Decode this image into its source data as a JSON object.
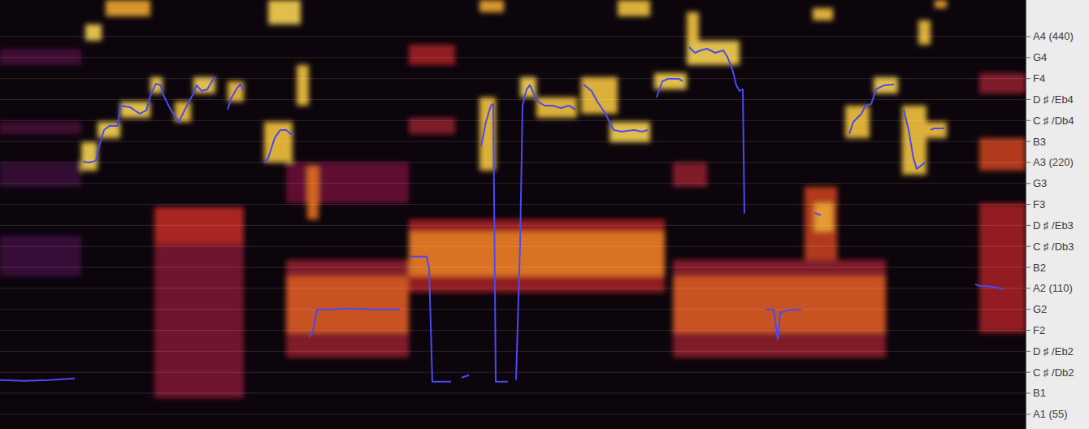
{
  "chart_data": {
    "type": "heatmap",
    "log": "y",
    "grid": true,
    "tick_labels": "y",
    "xlim": [
      0,
      1262
    ],
    "ylim": [
      50.7,
      538.1
    ],
    "yticks": [
      {
        "value": 440,
        "label": "A4 (440)"
      },
      {
        "value": 392.0,
        "label": "G4"
      },
      {
        "value": 349.23,
        "label": "F4"
      },
      {
        "value": 311.13,
        "label": "D ♯ /Eb4"
      },
      {
        "value": 277.18,
        "label": "C ♯ /Db4"
      },
      {
        "value": 246.94,
        "label": "B3"
      },
      {
        "value": 220,
        "label": "A3 (220)"
      },
      {
        "value": 196.0,
        "label": "G3"
      },
      {
        "value": 174.61,
        "label": "F3"
      },
      {
        "value": 155.56,
        "label": "D ♯ /Eb3"
      },
      {
        "value": 138.59,
        "label": "C ♯ /Db3"
      },
      {
        "value": 123.47,
        "label": "B2"
      },
      {
        "value": 110,
        "label": "A2 (110)"
      },
      {
        "value": 98.0,
        "label": "G2"
      },
      {
        "value": 87.31,
        "label": "F2"
      },
      {
        "value": 77.78,
        "label": "D ♯ /Eb2"
      },
      {
        "value": 69.3,
        "label": "C ♯ /Db2"
      },
      {
        "value": 61.74,
        "label": "B1"
      },
      {
        "value": 55,
        "label": "A1 (55)"
      }
    ],
    "cells": [
      [
        0,
        100,
        376.3,
        411.4,
        0.25
      ],
      [
        0,
        100,
        257.3,
        275.1,
        0.25
      ],
      [
        0,
        100,
        117.6,
        147.1,
        0.22
      ],
      [
        0,
        100,
        192.4,
        220.0,
        0.2
      ],
      [
        190,
        300,
        60.1,
        172.0,
        0.4
      ],
      [
        190,
        300,
        140.7,
        172.0,
        0.55
      ],
      [
        352,
        503,
        75.2,
        128.7,
        0.45
      ],
      [
        352,
        503,
        86.0,
        117.6,
        0.65
      ],
      [
        352,
        503,
        175.9,
        220.0,
        0.35
      ],
      [
        503,
        818,
        107.6,
        160.9,
        0.5
      ],
      [
        503,
        818,
        117.6,
        150.4,
        0.72
      ],
      [
        503,
        560,
        376.3,
        420.8,
        0.5
      ],
      [
        503,
        560,
        257.3,
        281.3,
        0.45
      ],
      [
        828,
        1090,
        75.2,
        128.7,
        0.45
      ],
      [
        828,
        1090,
        86.0,
        117.6,
        0.65
      ],
      [
        828,
        870,
        192.4,
        220.0,
        0.45
      ],
      [
        1205,
        1262,
        210.4,
        251.6,
        0.6
      ],
      [
        1205,
        1262,
        86.0,
        175.9,
        0.5
      ],
      [
        1205,
        1262,
        321.7,
        359.8,
        0.45
      ],
      [
        990,
        1030,
        128.7,
        192.4,
        0.6
      ],
      [
        100,
        120,
        210.4,
        246.0,
        0.9
      ],
      [
        120,
        148,
        251.6,
        275.1,
        0.9
      ],
      [
        148,
        185,
        281.3,
        307.6,
        0.9
      ],
      [
        185,
        200,
        321.7,
        351.9,
        0.9
      ],
      [
        215,
        235,
        275.1,
        307.6,
        0.85
      ],
      [
        238,
        265,
        321.7,
        351.9,
        0.9
      ],
      [
        280,
        300,
        307.6,
        344.0,
        0.85
      ],
      [
        325,
        360,
        220.0,
        275.1,
        0.85
      ],
      [
        365,
        380,
        300.9,
        376.3,
        0.85
      ],
      [
        378,
        392,
        160.9,
        215.2,
        0.7
      ],
      [
        590,
        610,
        210.4,
        314.7,
        0.85
      ],
      [
        640,
        660,
        314.7,
        351.9,
        0.9
      ],
      [
        660,
        710,
        281.3,
        314.7,
        0.85
      ],
      [
        715,
        760,
        287.7,
        351.9,
        0.85
      ],
      [
        750,
        800,
        246.0,
        275.1,
        0.9
      ],
      [
        805,
        845,
        329.0,
        359.8,
        0.9
      ],
      [
        845,
        910,
        376.3,
        430.3,
        0.9
      ],
      [
        1002,
        1025,
        150.4,
        175.9,
        0.8
      ],
      [
        1040,
        1070,
        251.6,
        300.9,
        0.85
      ],
      [
        1075,
        1105,
        321.7,
        351.9,
        0.9
      ],
      [
        1110,
        1140,
        205.7,
        300.9,
        0.85
      ],
      [
        1140,
        1165,
        251.6,
        275.1,
        0.85
      ],
      [
        105,
        125,
        430.3,
        470.5,
        0.9
      ],
      [
        130,
        185,
        492.0,
        538.1,
        0.8
      ],
      [
        330,
        370,
        470.5,
        538.1,
        0.9
      ],
      [
        590,
        620,
        503.2,
        538.1,
        0.8
      ],
      [
        760,
        800,
        492.0,
        538.1,
        0.85
      ],
      [
        845,
        860,
        430.3,
        503.2,
        0.85
      ],
      [
        1000,
        1025,
        481.1,
        514.5,
        0.85
      ],
      [
        1130,
        1145,
        420.8,
        481.1,
        0.85
      ],
      [
        1150,
        1165,
        514.5,
        538.1,
        0.8
      ]
    ],
    "series": [
      {
        "type": "line",
        "color": "#4a4af2",
        "x": [
          0,
          30,
          60,
          92,
          96,
          102,
          110,
          118,
          122,
          128,
          135,
          145,
          148,
          160,
          172,
          180,
          185,
          192,
          198,
          200,
          210,
          220,
          225,
          230,
          238,
          242,
          248,
          255,
          262,
          265,
          272,
          280,
          285,
          292,
          296,
          300,
          312,
          325,
          330,
          338,
          345,
          352,
          358,
          362,
          370,
          380,
          385,
          390,
          400,
          430,
          460,
          492,
          498,
          505,
          525,
          528,
          532,
          555,
          562,
          568,
          577,
          585,
          592,
          598,
          604,
          607,
          610,
          625,
          630,
          635,
          640,
          643,
          648,
          652,
          658,
          662,
          670,
          680,
          690,
          700,
          708,
          713,
          718,
          728,
          735,
          745,
          755,
          765,
          780,
          790,
          797,
          802,
          808,
          815,
          822,
          835,
          840,
          844,
          848,
          855,
          862,
          870,
          880,
          890,
          895,
          902,
          906,
          910,
          914,
          916,
          930,
          942,
          952,
          957,
          960,
          970,
          986,
          995,
          1002,
          1010,
          1030,
          1045,
          1050,
          1060,
          1065,
          1072,
          1078,
          1088,
          1100,
          1106,
          1112,
          1118,
          1124,
          1128,
          1132,
          1138,
          1141,
          1145,
          1150,
          1162,
          1180,
          1200,
          1205,
          1220,
          1235
        ],
        "values": [
          66.4,
          66.1,
          66.4,
          67.0,
          null,
          221.0,
          220.0,
          222.0,
          240.6,
          263.1,
          269.1,
          269.1,
          300.9,
          298.2,
          287.7,
          292.9,
          317.5,
          339.5,
          336.5,
          321.7,
          294.2,
          275.1,
          287.7,
          300.9,
          321.7,
          336.5,
          326.1,
          329.0,
          347.2,
          351.9,
          null,
          294.2,
          314.7,
          332.0,
          338.0,
          326.1,
          null,
          220.0,
          225.0,
          251.6,
          263.1,
          263.1,
          257.3,
          257.3,
          null,
          84.1,
          86.8,
          97.9,
          97.9,
          98.4,
          97.9,
          97.9,
          null,
          131.0,
          131.0,
          123.0,
          65.8,
          65.8,
          null,
          67.3,
          68.2,
          null,
          240.6,
          275.1,
          300.9,
          303.6,
          65.8,
          65.8,
          null,
          66.4,
          140.7,
          300.9,
          329.0,
          336.5,
          317.5,
          307.6,
          300.9,
          300.9,
          296.9,
          300.9,
          294.2,
          null,
          338.0,
          326.1,
          307.6,
          287.7,
          263.1,
          260.7,
          263.1,
          260.7,
          263.1,
          null,
          314.7,
          344.0,
          348.7,
          348.7,
          344.0,
          null,
          415.1,
          402.3,
          407.8,
          411.4,
          402.3,
          407.8,
          393.5,
          363.0,
          336.5,
          326.1,
          329.0,
          166.0,
          null,
          97.9,
          97.9,
          83.0,
          96.2,
          97.5,
          97.9,
          null,
          166.7,
          164.5,
          null,
          257.3,
          275.1,
          287.7,
          300.9,
          303.6,
          329.0,
          336.5,
          338.0,
          null,
          294.2,
          263.1,
          225.0,
          212.3,
          215.2,
          220.0,
          null,
          263.1,
          265.5,
          265.5,
          null,
          112.5,
          111.5,
          111.0,
          109.5
        ]
      }
    ]
  }
}
